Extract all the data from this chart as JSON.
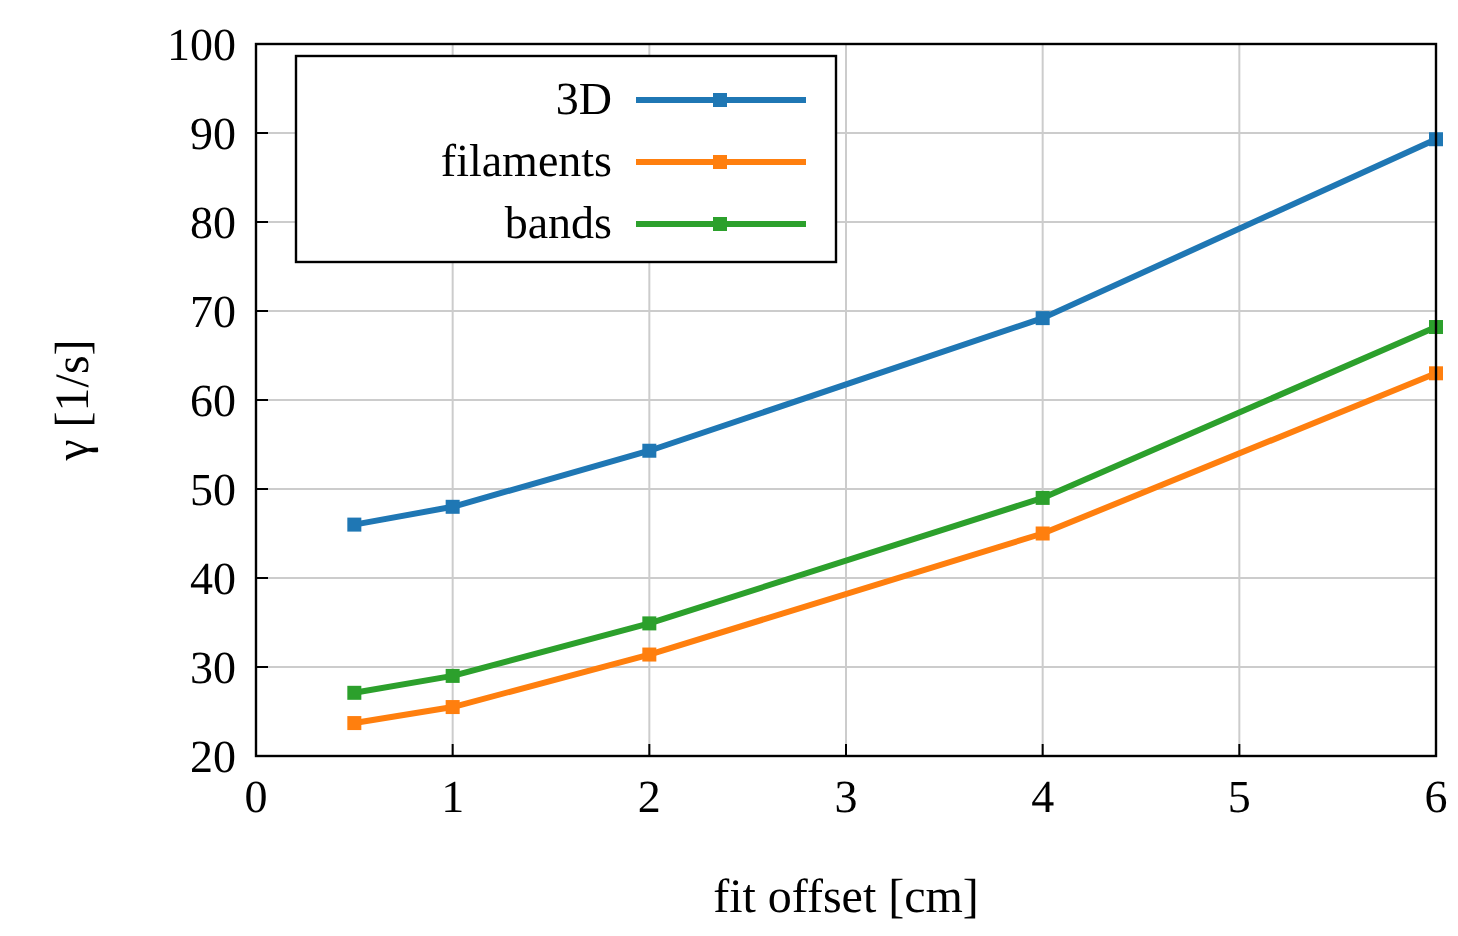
{
  "chart_data": {
    "type": "line",
    "xlabel": "fit offset [cm]",
    "ylabel": "γ [1/s]",
    "x": [
      0.5,
      1,
      2,
      4,
      6
    ],
    "series": [
      {
        "name": "3D",
        "color": "#1f77b4",
        "values": [
          46,
          48,
          54.3,
          69.2,
          89.3
        ]
      },
      {
        "name": "filaments",
        "color": "#ff7f0e",
        "values": [
          23.7,
          25.5,
          31.4,
          45,
          63
        ]
      },
      {
        "name": "bands",
        "color": "#2ca02c",
        "values": [
          27.1,
          29,
          34.9,
          49,
          68.2
        ]
      }
    ],
    "xlim": [
      0,
      6
    ],
    "xticks": [
      0,
      1,
      2,
      3,
      4,
      5,
      6
    ],
    "ylim": [
      20,
      100
    ],
    "yticks": [
      20,
      30,
      40,
      50,
      60,
      70,
      80,
      90,
      100
    ],
    "grid": true,
    "legend": "top left",
    "marker": "square",
    "line_style": "solid"
  }
}
